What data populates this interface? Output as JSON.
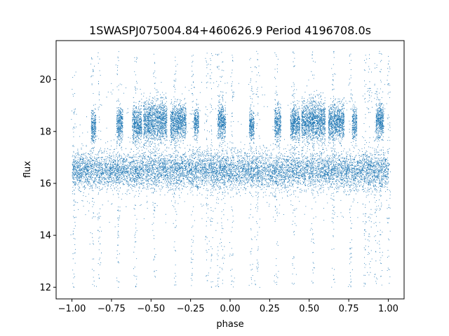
{
  "chart_data": {
    "type": "scatter",
    "title": "1SWASPJ075004.84+460626.9 Period 4196708.0s",
    "xlabel": "phase",
    "ylabel": "flux",
    "xlim": [
      -1.1,
      1.1
    ],
    "ylim": [
      11.55,
      21.5
    ],
    "x_ticks": [
      -1.0,
      -0.75,
      -0.5,
      -0.25,
      0.0,
      0.25,
      0.5,
      0.75,
      1.0
    ],
    "x_tick_labels": [
      "−1.00",
      "−0.75",
      "−0.50",
      "−0.25",
      "0.00",
      "0.25",
      "0.50",
      "0.75",
      "1.00"
    ],
    "y_ticks": [
      12,
      14,
      16,
      18,
      20
    ],
    "y_tick_labels": [
      "12",
      "14",
      "16",
      "18",
      "20"
    ],
    "grid": false,
    "legend": "none",
    "marker_color": "#1f77b4",
    "series": [
      {
        "baseline": {
          "x_range": [
            -1.0,
            1.0
          ],
          "center": 16.5,
          "spread": 0.35
        },
        "high_state_clusters": [
          {
            "x_range": [
              -0.88,
              -0.85
            ],
            "center": 18.2,
            "spread": 0.3
          },
          {
            "x_range": [
              -0.72,
              -0.68
            ],
            "center": 18.3,
            "spread": 0.35
          },
          {
            "x_range": [
              -0.62,
              -0.56
            ],
            "center": 18.3,
            "spread": 0.35
          },
          {
            "x_range": [
              -0.55,
              -0.4
            ],
            "center": 18.4,
            "spread": 0.4
          },
          {
            "x_range": [
              -0.38,
              -0.34
            ],
            "center": 18.3,
            "spread": 0.35
          },
          {
            "x_range": [
              -0.34,
              -0.28
            ],
            "center": 18.4,
            "spread": 0.35
          },
          {
            "x_range": [
              -0.23,
              -0.2
            ],
            "center": 18.3,
            "spread": 0.3
          },
          {
            "x_range": [
              -0.08,
              -0.03
            ],
            "center": 18.4,
            "spread": 0.35
          },
          {
            "x_range": [
              0.12,
              0.15
            ],
            "center": 18.2,
            "spread": 0.3
          },
          {
            "x_range": [
              0.28,
              0.32
            ],
            "center": 18.3,
            "spread": 0.35
          },
          {
            "x_range": [
              0.38,
              0.44
            ],
            "center": 18.3,
            "spread": 0.35
          },
          {
            "x_range": [
              0.45,
              0.6
            ],
            "center": 18.4,
            "spread": 0.4
          },
          {
            "x_range": [
              0.62,
              0.66
            ],
            "center": 18.3,
            "spread": 0.35
          },
          {
            "x_range": [
              0.66,
              0.72
            ],
            "center": 18.4,
            "spread": 0.35
          },
          {
            "x_range": [
              0.77,
              0.8
            ],
            "center": 18.3,
            "spread": 0.3
          },
          {
            "x_range": [
              0.92,
              0.97
            ],
            "center": 18.4,
            "spread": 0.35
          }
        ],
        "vertical_streaks": [
          -0.99,
          -0.87,
          -0.83,
          -0.71,
          -0.6,
          -0.48,
          -0.35,
          -0.24,
          -0.15,
          -0.12,
          -0.08,
          -0.05,
          0.01,
          0.13,
          0.17,
          0.29,
          0.4,
          0.52,
          0.65,
          0.76,
          0.85,
          0.88,
          0.92,
          0.95,
          1.0
        ],
        "y_extent": [
          12.0,
          21.1
        ]
      }
    ]
  }
}
